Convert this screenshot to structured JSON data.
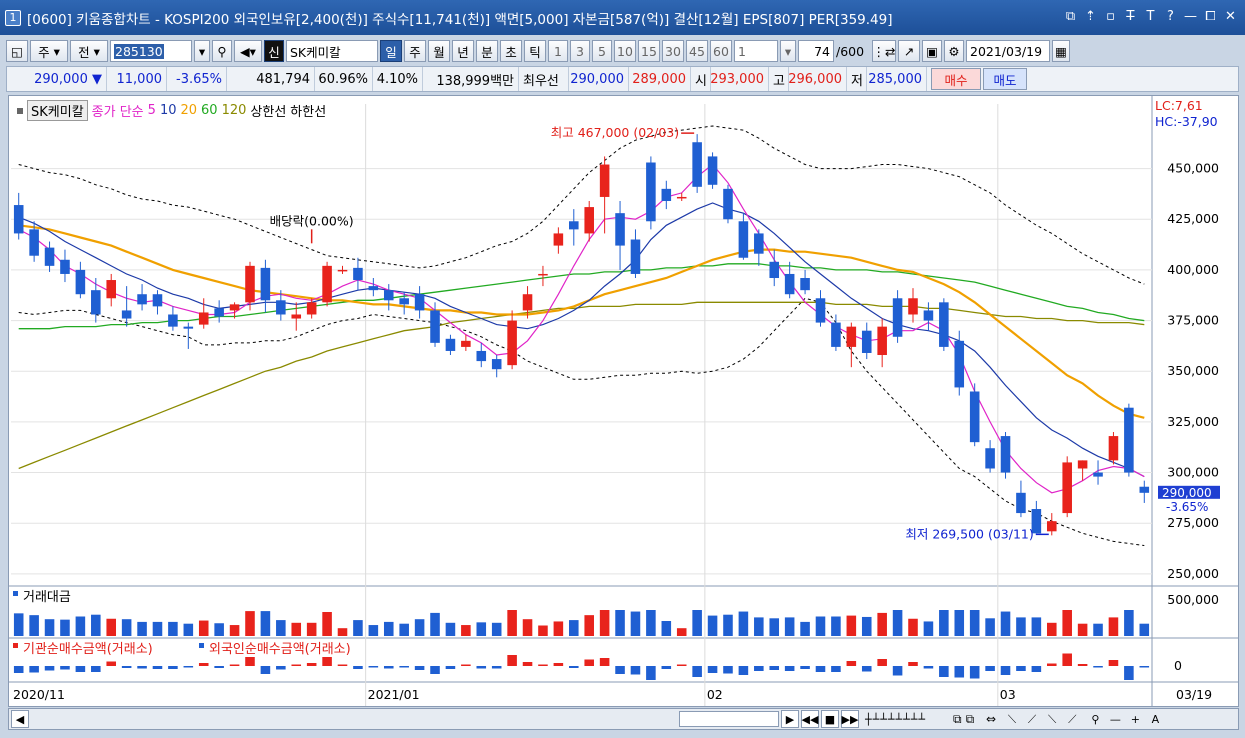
{
  "title": {
    "num": "1",
    "text": "[0600] 키움종합차트 - KOSPI200 외국인보유[2,400(천)] 주식수[11,741(천)] 액면[5,000] 자본금[587(억)] 결산[12월] EPS[807] PER[359.49]",
    "buttons": [
      "⧉",
      "⇡",
      "▫",
      "T̶",
      "T",
      "?",
      "—",
      "⧠",
      "✕"
    ]
  },
  "toolbar": {
    "type_sel": "주",
    "range_sel": "전",
    "code": "285130",
    "badge": "신",
    "name": "SK케미칼",
    "periods": [
      "일",
      "주",
      "월",
      "년",
      "분",
      "초",
      "틱"
    ],
    "active_period": "일",
    "nums": [
      "1",
      "3",
      "5",
      "10",
      "15",
      "30",
      "45",
      "60"
    ],
    "count_sel": "1",
    "bar_count": "74",
    "bar_total": "/600",
    "date": "2021/03/19"
  },
  "quote": {
    "price": "290,000",
    "change": "11,000",
    "pct": "-3.65%",
    "volume": "481,794",
    "vol_ratio": "60.96%",
    "turnover": "4.10%",
    "amount": "138,999백만",
    "best_label": "최우선",
    "ask": "290,000",
    "bid": "289,000",
    "open_label": "시",
    "open": "293,000",
    "high_label": "고",
    "high": "296,000",
    "low_label": "저",
    "low": "285,000",
    "buy": "매수",
    "sell": "매도"
  },
  "chart_data": {
    "type": "candlestick",
    "legend": {
      "name": "SK케미칼",
      "price": "종가 단순",
      "ma": [
        "5",
        "10",
        "20",
        "60",
        "120"
      ],
      "upper": "상한선",
      "lower": "하한선"
    },
    "ma_colors": {
      "5": "#e024c8",
      "10": "#1d3aa8",
      "20": "#f0a000",
      "60": "#22aa22",
      "120": "#8a8a00"
    },
    "corner": {
      "lc": "LC:7,61",
      "hc": "HC:-37,90"
    },
    "y_ticks": [
      "450,000",
      "425,000",
      "400,000",
      "375,000",
      "350,000",
      "325,000",
      "300,000",
      "275,000",
      "250,000"
    ],
    "ylim": [
      250000,
      470000
    ],
    "current_price": "290,000",
    "current_pct": "-3.65%",
    "annotations": {
      "high": "최고 467,000 (02/03)",
      "low": "최저 269,500 (03/11)",
      "ex_div": "배당락(0.00%)"
    },
    "x_labels": [
      "2020/11",
      "2021/01",
      "02",
      "03",
      "03/19"
    ],
    "candles": [
      [
        432,
        418,
        438,
        415
      ],
      [
        420,
        407,
        424,
        404
      ],
      [
        411,
        402,
        414,
        399
      ],
      [
        405,
        398,
        410,
        394
      ],
      [
        400,
        388,
        404,
        386
      ],
      [
        390,
        378,
        396,
        374
      ],
      [
        386,
        395,
        398,
        382
      ],
      [
        380,
        376,
        392,
        372
      ],
      [
        388,
        383,
        393,
        380
      ],
      [
        388,
        382,
        390,
        378
      ],
      [
        378,
        372,
        382,
        370
      ],
      [
        372,
        371,
        374,
        361
      ],
      [
        373,
        379,
        386,
        371
      ],
      [
        381,
        377,
        385,
        374
      ],
      [
        380,
        383,
        384,
        376
      ],
      [
        384,
        402,
        404,
        380
      ],
      [
        401,
        385,
        405,
        379
      ],
      [
        385,
        378,
        390,
        375
      ],
      [
        376,
        378,
        384,
        370
      ],
      [
        378,
        384,
        386,
        376
      ],
      [
        384,
        402,
        404,
        382
      ],
      [
        400,
        400,
        402,
        398
      ],
      [
        401,
        395,
        406,
        390
      ],
      [
        392,
        390,
        396,
        387
      ],
      [
        390,
        385,
        393,
        380
      ],
      [
        386,
        383,
        389,
        378
      ],
      [
        388,
        380,
        392,
        376
      ],
      [
        380,
        364,
        384,
        362
      ],
      [
        366,
        360,
        368,
        358
      ],
      [
        362,
        365,
        368,
        360
      ],
      [
        360,
        355,
        364,
        352
      ],
      [
        356,
        351,
        358,
        347
      ],
      [
        353,
        375,
        380,
        351
      ],
      [
        380,
        388,
        392,
        376
      ],
      [
        398,
        398,
        402,
        392
      ],
      [
        412,
        418,
        421,
        408
      ],
      [
        424,
        420,
        430,
        412
      ],
      [
        418,
        431,
        434,
        414
      ],
      [
        436,
        452,
        456,
        418
      ],
      [
        428,
        412,
        434,
        400
      ],
      [
        415,
        398,
        420,
        396
      ],
      [
        453,
        424,
        456,
        420
      ],
      [
        440,
        434,
        444,
        430
      ],
      [
        436,
        436,
        438,
        434
      ],
      [
        463,
        441,
        467,
        438
      ],
      [
        456,
        442,
        458,
        440
      ],
      [
        440,
        425,
        442,
        423
      ],
      [
        424,
        406,
        428,
        405
      ],
      [
        418,
        408,
        420,
        402
      ],
      [
        404,
        396,
        410,
        392
      ],
      [
        398,
        388,
        404,
        386
      ],
      [
        396,
        390,
        400,
        388
      ],
      [
        386,
        374,
        390,
        372
      ],
      [
        374,
        362,
        378,
        360
      ],
      [
        362,
        372,
        374,
        352
      ],
      [
        370,
        359,
        374,
        356
      ],
      [
        358,
        372,
        376,
        352
      ],
      [
        386,
        367,
        390,
        364
      ],
      [
        378,
        386,
        391,
        374
      ],
      [
        380,
        375,
        384,
        370
      ],
      [
        384,
        362,
        386,
        360
      ],
      [
        365,
        342,
        370,
        338
      ],
      [
        340,
        315,
        344,
        313
      ],
      [
        312,
        302,
        316,
        300
      ],
      [
        318,
        300,
        320,
        297
      ],
      [
        290,
        280,
        296,
        278
      ],
      [
        282,
        270,
        286,
        270
      ],
      [
        271,
        276,
        280,
        269
      ],
      [
        280,
        305,
        308,
        278
      ],
      [
        302,
        306,
        306,
        296
      ],
      [
        300,
        298,
        306,
        294
      ],
      [
        306,
        318,
        320,
        304
      ],
      [
        332,
        300,
        334,
        298
      ],
      [
        293,
        290,
        296,
        285
      ]
    ],
    "ma5": [
      420,
      416,
      410,
      402,
      398,
      393,
      389,
      386,
      384,
      385,
      382,
      380,
      378,
      378,
      379,
      384,
      387,
      388,
      386,
      385,
      388,
      392,
      395,
      393,
      390,
      388,
      386,
      380,
      374,
      368,
      364,
      358,
      359,
      365,
      375,
      388,
      402,
      415,
      425,
      426,
      425,
      429,
      436,
      438,
      446,
      452,
      443,
      430,
      418,
      405,
      394,
      384,
      378,
      372,
      368,
      365,
      366,
      370,
      370,
      374,
      370,
      358,
      340,
      325,
      311,
      302,
      295,
      290,
      292,
      296,
      301,
      303,
      302,
      298
    ],
    "ma10": [
      426,
      423,
      419,
      414,
      410,
      406,
      402,
      398,
      395,
      391,
      388,
      386,
      383,
      381,
      382,
      383,
      384,
      384,
      383,
      384,
      386,
      388,
      390,
      391,
      390,
      389,
      388,
      386,
      382,
      379,
      376,
      373,
      372,
      371,
      373,
      376,
      380,
      385,
      392,
      398,
      405,
      415,
      422,
      426,
      430,
      433,
      430,
      428,
      424,
      418,
      411,
      404,
      398,
      392,
      386,
      381,
      376,
      373,
      371,
      370,
      368,
      365,
      360,
      352,
      343,
      335,
      327,
      321,
      317,
      312,
      308,
      305,
      302,
      298
    ],
    "ma20": [
      422,
      421,
      420,
      418,
      416,
      414,
      412,
      409,
      406,
      403,
      400,
      398,
      396,
      394,
      392,
      390,
      389,
      388,
      387,
      386,
      385,
      385,
      384,
      383,
      383,
      382,
      381,
      380,
      380,
      379,
      379,
      378,
      378,
      378,
      379,
      380,
      382,
      385,
      388,
      390,
      392,
      394,
      396,
      399,
      402,
      405,
      407,
      409,
      410,
      410,
      409,
      409,
      408,
      407,
      406,
      404,
      402,
      400,
      399,
      396,
      393,
      389,
      384,
      378,
      372,
      366,
      360,
      354,
      348,
      344,
      338,
      333,
      329,
      327
    ],
    "ma60": [
      371,
      371,
      371,
      372,
      372,
      372,
      373,
      373,
      374,
      374,
      375,
      375,
      376,
      377,
      377,
      378,
      379,
      380,
      381,
      382,
      383,
      384,
      385,
      385,
      386,
      387,
      388,
      389,
      390,
      391,
      392,
      393,
      394,
      395,
      396,
      397,
      398,
      398,
      399,
      399,
      400,
      400,
      401,
      401,
      402,
      402,
      403,
      403,
      403,
      402,
      402,
      401,
      401,
      400,
      400,
      400,
      399,
      399,
      398,
      397,
      396,
      395,
      394,
      392,
      390,
      388,
      386,
      384,
      382,
      381,
      379,
      378,
      376,
      375
    ],
    "ma120": [
      302,
      305,
      308,
      311,
      314,
      317,
      320,
      323,
      326,
      329,
      332,
      335,
      338,
      341,
      344,
      347,
      350,
      352,
      355,
      357,
      360,
      362,
      364,
      366,
      368,
      370,
      371,
      372,
      374,
      375,
      376,
      377,
      378,
      379,
      380,
      381,
      381,
      382,
      382,
      382,
      383,
      383,
      383,
      383,
      384,
      384,
      384,
      384,
      384,
      384,
      384,
      384,
      384,
      383,
      383,
      383,
      382,
      382,
      382,
      381,
      381,
      380,
      379,
      378,
      377,
      377,
      376,
      376,
      375,
      375,
      374,
      374,
      374,
      373
    ],
    "upper": [
      452,
      450,
      448,
      447,
      445,
      442,
      440,
      437,
      435,
      434,
      432,
      431,
      429,
      427,
      425,
      422,
      419,
      416,
      413,
      410,
      407,
      406,
      405,
      404,
      403,
      402,
      401,
      402,
      404,
      406,
      409,
      412,
      414,
      418,
      424,
      432,
      440,
      448,
      454,
      460,
      464,
      466,
      468,
      469,
      470,
      471,
      470,
      469,
      465,
      460,
      456,
      452,
      450,
      450,
      450,
      451,
      452,
      452,
      451,
      450,
      448,
      446,
      442,
      438,
      432,
      427,
      422,
      418,
      413,
      408,
      404,
      400,
      396,
      393
    ],
    "lower": [
      379,
      378,
      379,
      380,
      380,
      378,
      376,
      374,
      372,
      370,
      368,
      367,
      363,
      363,
      364,
      364,
      365,
      365,
      367,
      370,
      373,
      375,
      376,
      378,
      377,
      376,
      375,
      374,
      372,
      370,
      367,
      363,
      360,
      355,
      352,
      349,
      346,
      346,
      347,
      348,
      348,
      349,
      349,
      350,
      349,
      350,
      352,
      356,
      362,
      370,
      378,
      386,
      384,
      374,
      360,
      350,
      342,
      334,
      326,
      318,
      310,
      302,
      298,
      292,
      286,
      282,
      280,
      276,
      273,
      270,
      268,
      266,
      265,
      264
    ],
    "volume": {
      "label": "거래대금",
      "tick": "500,000"
    },
    "flow": {
      "label1": "기관순매수금액(거래소)",
      "label2": "외국인순매수금액(거래소)",
      "tick": "0"
    }
  }
}
